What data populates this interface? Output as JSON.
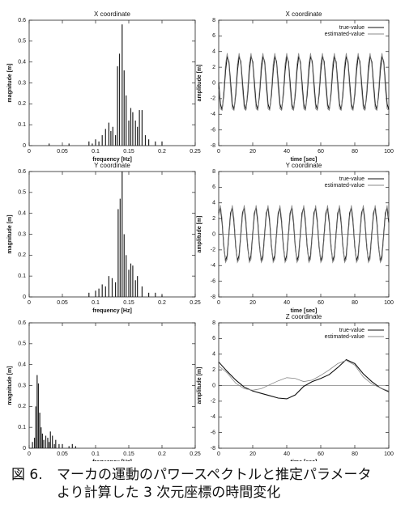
{
  "chart_data": [
    {
      "type": "bar",
      "title": "X coordinate",
      "x_label": "frequency [Hz]",
      "y_label": "magnitude [m]",
      "color": "#222",
      "x": [
        0.03,
        0.06,
        0.09,
        0.095,
        0.1,
        0.105,
        0.11,
        0.115,
        0.12,
        0.123,
        0.126,
        0.13,
        0.133,
        0.136,
        0.14,
        0.143,
        0.146,
        0.15,
        0.153,
        0.156,
        0.16,
        0.163,
        0.166,
        0.17,
        0.175,
        0.18,
        0.19,
        0.2
      ],
      "values": [
        0.01,
        0.01,
        0.02,
        0.01,
        0.03,
        0.02,
        0.05,
        0.08,
        0.11,
        0.07,
        0.09,
        0.05,
        0.38,
        0.44,
        0.58,
        0.36,
        0.24,
        0.12,
        0.18,
        0.16,
        0.12,
        0.09,
        0.17,
        0.17,
        0.05,
        0.03,
        0.02,
        0.02
      ],
      "xlim": [
        0,
        0.25
      ],
      "xticks": [
        0,
        0.05,
        0.1,
        0.15,
        0.2,
        0.25
      ],
      "ylim": [
        0,
        0.6
      ],
      "yticks": [
        0,
        0.1,
        0.2,
        0.3,
        0.4,
        0.5,
        0.6
      ]
    },
    {
      "type": "line",
      "title": "X coordinate",
      "x_label": "time [sec]",
      "y_label": "amplitude [m]",
      "zero_line": true,
      "x": [
        0,
        1,
        2,
        3,
        4,
        5,
        6,
        7,
        8,
        9,
        10,
        11,
        12,
        13,
        14,
        15,
        16,
        17,
        18,
        19,
        20,
        21,
        22,
        23,
        24,
        25,
        26,
        27,
        28,
        29,
        30,
        31,
        32,
        33,
        34,
        35,
        36,
        37,
        38,
        39,
        40,
        41,
        42,
        43,
        44,
        45,
        46,
        47,
        48,
        49,
        50,
        51,
        52,
        53,
        54,
        55,
        56,
        57,
        58,
        59,
        60,
        61,
        62,
        63,
        64,
        65,
        66,
        67,
        68,
        69,
        70,
        71,
        72,
        73,
        74,
        75,
        76,
        77,
        78,
        79,
        80,
        81,
        82,
        83,
        84,
        85,
        86,
        87,
        88,
        89,
        90,
        91,
        92,
        93,
        94,
        95,
        96,
        97,
        98,
        99,
        100
      ],
      "series": [
        {
          "name": "true-value",
          "color": "#111",
          "values": [
            0,
            -2.7,
            -3.4,
            -1.5,
            1.5,
            3.4,
            2.7,
            0,
            -2.7,
            -3.4,
            -1.5,
            1.5,
            3.4,
            2.7,
            0,
            -2.7,
            -3.4,
            -1.5,
            1.5,
            3.4,
            2.7,
            0,
            -2.7,
            -3.4,
            -1.5,
            1.5,
            3.4,
            2.7,
            0,
            -2.7,
            -3.4,
            -1.5,
            1.5,
            3.4,
            2.7,
            0,
            -2.7,
            -3.4,
            -1.5,
            1.5,
            3.4,
            2.7,
            0,
            -2.7,
            -3.4,
            -1.5,
            1.5,
            3.4,
            2.7,
            0,
            -2.7,
            -3.4,
            -1.5,
            1.5,
            3.4,
            2.7,
            0,
            -2.7,
            -3.4,
            -1.5,
            1.5,
            3.4,
            2.7,
            0,
            -2.7,
            -3.4,
            -1.5,
            1.5,
            3.4,
            2.7,
            0,
            -2.7,
            -3.4,
            -1.5,
            1.5,
            3.4,
            2.7,
            0,
            -2.7,
            -3.4,
            -1.5,
            1.5,
            3.4,
            2.7,
            0,
            -2.7,
            -3.4,
            -1.5,
            1.5,
            3.4,
            2.7,
            0,
            -2.7,
            -3.4,
            -1.5,
            1.5,
            3.4,
            2.7,
            0,
            -2.7,
            -3.4
          ]
        },
        {
          "name": "estimated-value",
          "color": "#888",
          "values": [
            -0.8,
            -3.3,
            -3.5,
            -0.9,
            2.4,
            3.8,
            2.3,
            -0.8,
            -3.3,
            -3.5,
            -0.9,
            2.4,
            3.8,
            2.3,
            -0.8,
            -3.3,
            -3.5,
            -0.9,
            2.4,
            3.8,
            2.3,
            -0.8,
            -3.3,
            -3.5,
            -0.9,
            2.4,
            3.8,
            2.3,
            -0.8,
            -3.3,
            -3.5,
            -0.9,
            2.4,
            3.8,
            2.3,
            -0.8,
            -3.3,
            -3.5,
            -0.9,
            2.4,
            3.8,
            2.3,
            -0.8,
            -3.3,
            -3.5,
            -0.9,
            2.4,
            3.8,
            2.3,
            -0.8,
            -3.3,
            -3.5,
            -0.9,
            2.4,
            3.8,
            2.3,
            -0.8,
            -3.3,
            -3.5,
            -0.9,
            2.4,
            3.8,
            2.3,
            -0.8,
            -3.3,
            -3.5,
            -0.9,
            2.4,
            3.8,
            2.3,
            -0.8,
            -3.3,
            -3.5,
            -0.9,
            2.4,
            3.8,
            2.3,
            -0.8,
            -3.3,
            -3.5,
            -0.9,
            2.4,
            3.8,
            2.3,
            -0.8,
            -3.3,
            -3.5,
            -0.9,
            2.4,
            3.8,
            2.3,
            -0.8,
            -3.3,
            -3.5,
            -0.9,
            2.4,
            3.8,
            2.3,
            -0.8,
            -3.3,
            -3.5
          ]
        }
      ],
      "xlim": [
        0,
        100
      ],
      "xticks": [
        0,
        20,
        40,
        60,
        80,
        100
      ],
      "ylim": [
        -8,
        8
      ],
      "yticks": [
        -8,
        -6,
        -4,
        -2,
        0,
        2,
        4,
        6,
        8
      ]
    },
    {
      "type": "bar",
      "title": "Y coordinate",
      "x_label": "frequency [Hz]",
      "y_label": "magnitude [m]",
      "color": "#222",
      "x": [
        0.09,
        0.1,
        0.105,
        0.11,
        0.115,
        0.12,
        0.125,
        0.13,
        0.134,
        0.137,
        0.14,
        0.143,
        0.146,
        0.15,
        0.153,
        0.156,
        0.16,
        0.163,
        0.17,
        0.18,
        0.19,
        0.2
      ],
      "values": [
        0.02,
        0.03,
        0.04,
        0.06,
        0.05,
        0.1,
        0.09,
        0.07,
        0.42,
        0.47,
        0.6,
        0.3,
        0.2,
        0.13,
        0.16,
        0.15,
        0.08,
        0.1,
        0.05,
        0.02,
        0.02,
        0.01
      ],
      "xlim": [
        0,
        0.25
      ],
      "xticks": [
        0,
        0.05,
        0.1,
        0.15,
        0.2,
        0.25
      ],
      "ylim": [
        0,
        0.6
      ],
      "yticks": [
        0,
        0.1,
        0.2,
        0.3,
        0.4,
        0.5,
        0.6
      ]
    },
    {
      "type": "line",
      "title": "Y coordinate",
      "x_label": "time [sec]",
      "y_label": "amplitude [m]",
      "zero_line": true,
      "x": [
        0,
        1,
        2,
        3,
        4,
        5,
        6,
        7,
        8,
        9,
        10,
        11,
        12,
        13,
        14,
        15,
        16,
        17,
        18,
        19,
        20,
        21,
        22,
        23,
        24,
        25,
        26,
        27,
        28,
        29,
        30,
        31,
        32,
        33,
        34,
        35,
        36,
        37,
        38,
        39,
        40,
        41,
        42,
        43,
        44,
        45,
        46,
        47,
        48,
        49,
        50,
        51,
        52,
        53,
        54,
        55,
        56,
        57,
        58,
        59,
        60,
        61,
        62,
        63,
        64,
        65,
        66,
        67,
        68,
        69,
        70,
        71,
        72,
        73,
        74,
        75,
        76,
        77,
        78,
        79,
        80,
        81,
        82,
        83,
        84,
        85,
        86,
        87,
        88,
        89,
        90,
        91,
        92,
        93,
        94,
        95,
        96,
        97,
        98,
        99,
        100
      ],
      "series": [
        {
          "name": "true-value",
          "color": "#111",
          "values": [
            2.7,
            3.4,
            1.5,
            -1.5,
            -3.4,
            -2.7,
            0,
            2.7,
            3.4,
            1.5,
            -1.5,
            -3.4,
            -2.7,
            0,
            2.7,
            3.4,
            1.5,
            -1.5,
            -3.4,
            -2.7,
            0,
            2.7,
            3.4,
            1.5,
            -1.5,
            -3.4,
            -2.7,
            0,
            2.7,
            3.4,
            1.5,
            -1.5,
            -3.4,
            -2.7,
            0,
            2.7,
            3.4,
            1.5,
            -1.5,
            -3.4,
            -2.7,
            0,
            2.7,
            3.4,
            1.5,
            -1.5,
            -3.4,
            -2.7,
            0,
            2.7,
            3.4,
            1.5,
            -1.5,
            -3.4,
            -2.7,
            0,
            2.7,
            3.4,
            1.5,
            -1.5,
            -3.4,
            -2.7,
            0,
            2.7,
            3.4,
            1.5,
            -1.5,
            -3.4,
            -2.7,
            0,
            2.7,
            3.4,
            1.5,
            -1.5,
            -3.4,
            -2.7,
            0,
            2.7,
            3.4,
            1.5,
            -1.5,
            -3.4,
            -2.7,
            0,
            2.7,
            3.4,
            1.5,
            -1.5,
            -3.4,
            -2.7,
            0,
            2.7,
            3.4,
            1.5,
            -1.5,
            -3.4,
            -2.7,
            0,
            2.7,
            3.4,
            1.5
          ]
        },
        {
          "name": "estimated-value",
          "color": "#888",
          "values": [
            2.2,
            3.7,
            2,
            -1.1,
            -3.6,
            -3.2,
            -0.4,
            2.2,
            3.7,
            2,
            -1.1,
            -3.6,
            -3.2,
            -0.4,
            2.2,
            3.7,
            2,
            -1.1,
            -3.6,
            -3.2,
            -0.4,
            2.2,
            3.7,
            2,
            -1.1,
            -3.6,
            -3.2,
            -0.4,
            2.2,
            3.7,
            2,
            -1.1,
            -3.6,
            -3.2,
            -0.4,
            2.2,
            3.7,
            2,
            -1.1,
            -3.6,
            -3.2,
            -0.4,
            2.2,
            3.7,
            2,
            -1.1,
            -3.6,
            -3.2,
            -0.4,
            2.2,
            3.7,
            2,
            -1.1,
            -3.6,
            -3.2,
            -0.4,
            2.2,
            3.7,
            2,
            -1.1,
            -3.6,
            -3.2,
            -0.4,
            2.2,
            3.7,
            2,
            -1.1,
            -3.6,
            -3.2,
            -0.4,
            2.2,
            3.7,
            2,
            -1.1,
            -3.6,
            -3.2,
            -0.4,
            2.2,
            3.7,
            2,
            -1.1,
            -3.6,
            -3.2,
            -0.4,
            2.2,
            3.7,
            2,
            -1.1,
            -3.6,
            -3.2,
            -0.4,
            2.2,
            3.7,
            2,
            -1.1,
            -3.6,
            -3.2,
            -0.4,
            2.2,
            3.7,
            2
          ]
        }
      ],
      "xlim": [
        0,
        100
      ],
      "xticks": [
        0,
        20,
        40,
        60,
        80,
        100
      ],
      "ylim": [
        -8,
        8
      ],
      "yticks": [
        -8,
        -6,
        -4,
        -2,
        0,
        2,
        4,
        6,
        8
      ]
    },
    {
      "type": "bar",
      "x_label": "frequency [Hz]",
      "y_label": "magnitude [m]",
      "color": "#222",
      "x": [
        0.005,
        0.008,
        0.01,
        0.012,
        0.014,
        0.016,
        0.018,
        0.02,
        0.022,
        0.025,
        0.028,
        0.03,
        0.032,
        0.035,
        0.038,
        0.04,
        0.045,
        0.05,
        0.06,
        0.065,
        0.07
      ],
      "values": [
        0.03,
        0.05,
        0.2,
        0.35,
        0.31,
        0.17,
        0.1,
        0.07,
        0.04,
        0.06,
        0.05,
        0.03,
        0.08,
        0.06,
        0.02,
        0.04,
        0.02,
        0.02,
        0.01,
        0.02,
        0.01
      ],
      "xlim": [
        0,
        0.25
      ],
      "xticks": [
        0,
        0.05,
        0.1,
        0.15,
        0.2,
        0.25
      ],
      "ylim": [
        0,
        0.6
      ],
      "yticks": [
        0,
        0.1,
        0.2,
        0.3,
        0.4,
        0.5,
        0.6
      ]
    },
    {
      "type": "line",
      "title": "Z coordinate",
      "x_label": "time [sec]",
      "y_label": "amplitude [m]",
      "zero_line": true,
      "x": [
        0,
        5,
        10,
        15,
        20,
        25,
        30,
        35,
        40,
        45,
        50,
        55,
        60,
        65,
        70,
        75,
        80,
        85,
        90,
        95,
        100
      ],
      "series": [
        {
          "name": "true-value",
          "color": "#111",
          "values": [
            3,
            1.8,
            0.7,
            -0.2,
            -0.7,
            -1,
            -1.3,
            -1.6,
            -1.7,
            -1.2,
            -0.1,
            0.5,
            0.9,
            1.4,
            2.3,
            3.3,
            2.8,
            1.5,
            0.5,
            -0.3,
            -0.8
          ]
        },
        {
          "name": "estimated-value",
          "color": "#888",
          "values": [
            2.5,
            1.6,
            0.3,
            -0.4,
            -0.6,
            -0.4,
            0.1,
            0.6,
            1,
            0.9,
            0.5,
            0.7,
            1.3,
            2,
            2.8,
            3.2,
            2.6,
            1.1,
            0.2,
            -0.3,
            -0.7
          ]
        }
      ],
      "xlim": [
        0,
        100
      ],
      "xticks": [
        0,
        20,
        40,
        60,
        80,
        100
      ],
      "ylim": [
        -8,
        8
      ],
      "yticks": [
        -8,
        -6,
        -4,
        -2,
        0,
        2,
        4,
        6,
        8
      ]
    }
  ],
  "caption": {
    "label": "図 6.",
    "lines": [
      "マーカの運動のパワースペクトルと推定パラメータ",
      "より計算した 3 次元座標の時間変化"
    ]
  }
}
